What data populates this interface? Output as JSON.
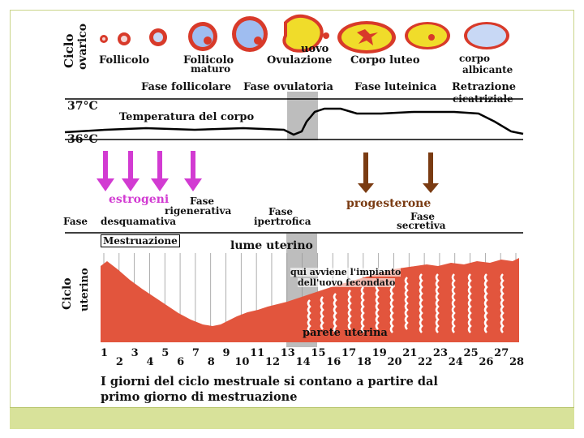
{
  "colors": {
    "estrogen_arrow": "#d23bd2",
    "progesterone_arrow": "#7a3b12",
    "uterine_tissue": "#e2553d",
    "ovulation_band": "#bdbdbd",
    "corpus_luteum": "#f0dc2a",
    "follicle_blue": "#5b8fd6",
    "follicle_red": "#d83a2a",
    "footer_bar": "#d8e29a"
  },
  "ovarian_cycle": {
    "side_label_line1": "Ciclo",
    "side_label_line2": "ovarico",
    "stages": [
      "Follicolo",
      "Follicolo",
      "maturo",
      "Ovulazione",
      "uovo",
      "Corpo luteo",
      "corpo",
      "albicante"
    ],
    "phases": [
      "Fase follicolare",
      "Fase ovulatoria",
      "Fase luteinica",
      "Retrazione",
      "cicatriziale"
    ]
  },
  "temperature": {
    "tick_high": "37°C",
    "tick_low": "36°C",
    "label": "Temperatura del corpo"
  },
  "hormones": {
    "estrogen_label": "estrogeni",
    "progesterone_label": "progesterone",
    "estrogen_arrow_icon": "down-arrow",
    "progesterone_arrow_icon": "down-arrow"
  },
  "uterine_cycle": {
    "side_label_line1": "Ciclo",
    "side_label_line2": "uterino",
    "phases": [
      "Fase",
      "rigenerativa",
      "Fase",
      "desquamativa",
      "Fase",
      "ipertrofica",
      "Fase",
      "secretiva"
    ],
    "mestruazione": "Mestruazione",
    "lume": "lume uterino",
    "impianto_line1": "qui avviene l'impianto",
    "impianto_line2": "dell'uovo fecondato",
    "parete": "parete uterina"
  },
  "days": [
    "1",
    "2",
    "3",
    "4",
    "5",
    "6",
    "7",
    "8",
    "9",
    "10",
    "11",
    "12",
    "13",
    "14",
    "15",
    "16",
    "17",
    "18",
    "19",
    "20",
    "21",
    "22",
    "23",
    "24",
    "25",
    "26",
    "27",
    "28"
  ],
  "caption_line1": "I giorni del ciclo mestruale si contano a partire dal",
  "caption_line2": "primo giorno di mestruazione"
}
